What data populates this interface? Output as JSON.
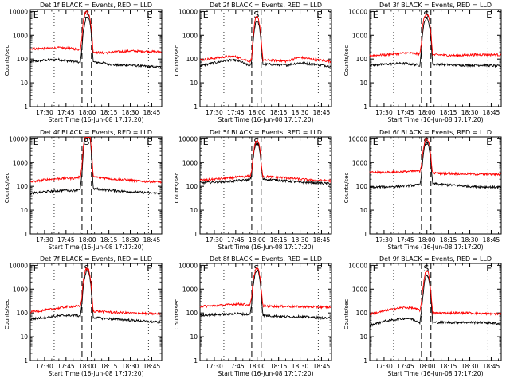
{
  "figure": {
    "ylabel": "Counts/sec",
    "xlabel": "Start Time (16-Jun-08 17:17:20)",
    "x_ticks": [
      "17:30",
      "17:45",
      "18:00",
      "18:15",
      "18:30",
      "18:45"
    ],
    "x_tick_minutes": [
      30,
      45,
      60,
      75,
      90,
      105
    ],
    "x_range_minutes": [
      20,
      112
    ],
    "y_ticks": [
      "1",
      "10",
      "100",
      "1000",
      "10000"
    ],
    "y_tick_values": [
      1,
      10,
      100,
      1000,
      10000
    ],
    "ylim": [
      1,
      12000
    ],
    "y_scale": "log",
    "dotted_vlines_minutes": [
      36.7,
      102.7
    ],
    "dashed_vlines_minutes": [
      56.2,
      62.8
    ],
    "markers": [
      {
        "text": "E",
        "x_minute": 24.0
      },
      {
        "text": "S",
        "x_minute": 59.5
      },
      {
        "text": "E",
        "x_minute": 103.5
      }
    ],
    "colors": {
      "events": "#000000",
      "lld": "#ff0000",
      "axis": "#000000"
    }
  },
  "chart_data": [
    {
      "type": "line",
      "title": "Det 1f BLACK = Events, RED = LLD",
      "x_start_label": "17:17:20",
      "x_unit": "minutes",
      "x": [
        20,
        30,
        40,
        45,
        50,
        55,
        56,
        57,
        58,
        59,
        60,
        61,
        62,
        63,
        64,
        70,
        80,
        90,
        100,
        112
      ],
      "series": [
        {
          "name": "Events",
          "values": [
            75,
            90,
            95,
            85,
            80,
            70,
            240,
            1400,
            2600,
            5500,
            6000,
            5000,
            2600,
            700,
            75,
            70,
            55,
            55,
            50,
            45
          ]
        },
        {
          "name": "LLD",
          "values": [
            270,
            280,
            300,
            290,
            270,
            250,
            700,
            4000,
            7000,
            10000,
            10000,
            8000,
            4000,
            1500,
            200,
            180,
            200,
            220,
            210,
            200
          ]
        }
      ]
    },
    {
      "type": "line",
      "title": "Det 2f BLACK = Events, RED = LLD",
      "x_start_label": "17:17:20",
      "x_unit": "minutes",
      "x": [
        20,
        30,
        40,
        45,
        50,
        55,
        56,
        57,
        58,
        59,
        60,
        61,
        62,
        63,
        64,
        70,
        80,
        90,
        100,
        112
      ],
      "series": [
        {
          "name": "Events",
          "values": [
            50,
            70,
            90,
            90,
            70,
            50,
            70,
            400,
            1600,
            3700,
            4000,
            3200,
            1500,
            300,
            60,
            60,
            55,
            70,
            60,
            50
          ]
        },
        {
          "name": "LLD",
          "values": [
            90,
            110,
            130,
            125,
            100,
            80,
            100,
            600,
            2500,
            5500,
            6000,
            4500,
            2200,
            500,
            90,
            90,
            80,
            120,
            95,
            80
          ]
        }
      ]
    },
    {
      "type": "line",
      "title": "Det 3f BLACK = Events, RED = LLD",
      "x_start_label": "17:17:20",
      "x_unit": "minutes",
      "x": [
        20,
        30,
        40,
        45,
        50,
        55,
        56,
        57,
        58,
        59,
        60,
        61,
        62,
        63,
        64,
        70,
        80,
        90,
        100,
        112
      ],
      "series": [
        {
          "name": "Events",
          "values": [
            55,
            60,
            65,
            65,
            60,
            55,
            200,
            1300,
            3000,
            4800,
            5000,
            4000,
            2000,
            500,
            60,
            60,
            55,
            55,
            55,
            50
          ]
        },
        {
          "name": "LLD",
          "values": [
            140,
            150,
            170,
            180,
            175,
            165,
            400,
            2500,
            5500,
            7500,
            7800,
            6500,
            3500,
            900,
            150,
            150,
            140,
            150,
            155,
            150
          ]
        }
      ]
    },
    {
      "type": "line",
      "title": "Det 4f BLACK = Events, RED = LLD",
      "x_start_label": "17:17:20",
      "x_unit": "minutes",
      "x": [
        20,
        30,
        40,
        45,
        50,
        55,
        56,
        57,
        58,
        59,
        60,
        61,
        62,
        63,
        64,
        70,
        80,
        90,
        100,
        112
      ],
      "series": [
        {
          "name": "Events",
          "values": [
            50,
            60,
            65,
            70,
            65,
            80,
            250,
            2000,
            9000,
            12000,
            12000,
            12000,
            9000,
            1500,
            80,
            75,
            65,
            60,
            55,
            50
          ]
        },
        {
          "name": "LLD",
          "values": [
            150,
            190,
            210,
            220,
            215,
            250,
            600,
            4000,
            11000,
            12000,
            12000,
            12000,
            11000,
            3000,
            250,
            230,
            200,
            180,
            160,
            150
          ]
        }
      ]
    },
    {
      "type": "line",
      "title": "Det 5f BLACK = Events, RED = LLD",
      "x_start_label": "17:17:20",
      "x_unit": "minutes",
      "x": [
        20,
        30,
        40,
        45,
        50,
        55,
        56,
        57,
        58,
        59,
        60,
        61,
        62,
        63,
        64,
        70,
        80,
        90,
        100,
        112
      ],
      "series": [
        {
          "name": "Events",
          "values": [
            140,
            150,
            160,
            170,
            180,
            190,
            260,
            1100,
            3500,
            6000,
            6500,
            5500,
            2500,
            600,
            200,
            190,
            170,
            150,
            140,
            130
          ]
        },
        {
          "name": "LLD",
          "values": [
            180,
            200,
            220,
            240,
            250,
            270,
            380,
            1600,
            4500,
            7500,
            8000,
            7000,
            3500,
            800,
            260,
            250,
            230,
            200,
            180,
            170
          ]
        }
      ]
    },
    {
      "type": "line",
      "title": "Det 6f BLACK = Events, RED = LLD",
      "x_start_label": "17:17:20",
      "x_unit": "minutes",
      "x": [
        20,
        30,
        40,
        45,
        50,
        55,
        56,
        57,
        58,
        59,
        60,
        61,
        62,
        63,
        64,
        70,
        80,
        90,
        100,
        112
      ],
      "series": [
        {
          "name": "Events",
          "values": [
            90,
            95,
            100,
            105,
            110,
            115,
            250,
            1200,
            3500,
            6500,
            7000,
            6000,
            2800,
            600,
            130,
            120,
            110,
            100,
            95,
            90
          ]
        },
        {
          "name": "LLD",
          "values": [
            380,
            390,
            410,
            420,
            430,
            440,
            700,
            2500,
            5500,
            9000,
            9500,
            8500,
            4500,
            1200,
            360,
            350,
            340,
            330,
            320,
            320
          ]
        }
      ]
    },
    {
      "type": "line",
      "title": "Det 7f BLACK = Events, RED = LLD",
      "x_start_label": "17:17:20",
      "x_unit": "minutes",
      "x": [
        20,
        30,
        40,
        45,
        50,
        55,
        56,
        57,
        58,
        59,
        60,
        61,
        62,
        63,
        64,
        70,
        80,
        90,
        100,
        112
      ],
      "series": [
        {
          "name": "Events",
          "values": [
            55,
            65,
            75,
            80,
            80,
            75,
            200,
            1000,
            3000,
            5500,
            6000,
            5000,
            2300,
            500,
            65,
            60,
            55,
            50,
            45,
            40
          ]
        },
        {
          "name": "LLD",
          "values": [
            110,
            130,
            160,
            180,
            190,
            190,
            400,
            2200,
            4500,
            7000,
            7200,
            6200,
            3000,
            800,
            120,
            115,
            105,
            100,
            95,
            90
          ]
        }
      ]
    },
    {
      "type": "line",
      "title": "Det 8f BLACK = Events, RED = LLD",
      "x_start_label": "17:17:20",
      "x_unit": "minutes",
      "x": [
        20,
        30,
        40,
        45,
        50,
        55,
        56,
        57,
        58,
        59,
        60,
        61,
        62,
        63,
        64,
        70,
        80,
        90,
        100,
        112
      ],
      "series": [
        {
          "name": "Events",
          "values": [
            80,
            85,
            90,
            95,
            90,
            85,
            200,
            1000,
            3000,
            5500,
            6000,
            5000,
            2300,
            500,
            80,
            75,
            70,
            70,
            65,
            60
          ]
        },
        {
          "name": "LLD",
          "values": [
            190,
            200,
            220,
            240,
            230,
            220,
            380,
            1800,
            4200,
            7000,
            7500,
            6500,
            3000,
            800,
            200,
            190,
            190,
            185,
            180,
            175
          ]
        }
      ]
    },
    {
      "type": "line",
      "title": "Det 9f BLACK = Events, RED = LLD",
      "x_start_label": "17:17:20",
      "x_unit": "minutes",
      "x": [
        20,
        30,
        40,
        45,
        50,
        55,
        56,
        57,
        58,
        59,
        60,
        61,
        62,
        63,
        64,
        70,
        80,
        90,
        100,
        112
      ],
      "series": [
        {
          "name": "Events",
          "values": [
            30,
            45,
            55,
            60,
            55,
            40,
            90,
            400,
            1500,
            3500,
            4000,
            3200,
            1300,
            300,
            40,
            40,
            40,
            40,
            40,
            35
          ]
        },
        {
          "name": "LLD",
          "values": [
            90,
            120,
            160,
            170,
            160,
            130,
            220,
            900,
            2600,
            5500,
            6000,
            5000,
            2200,
            500,
            100,
            100,
            100,
            100,
            95,
            90
          ]
        }
      ]
    }
  ]
}
